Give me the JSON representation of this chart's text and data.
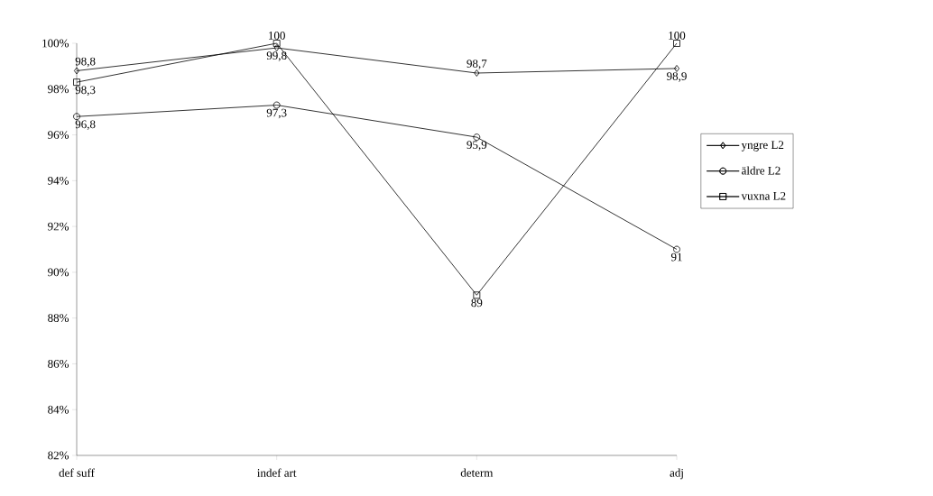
{
  "chart_data": {
    "type": "line",
    "categories": [
      "def suff",
      "indef art",
      "determ",
      "adj"
    ],
    "series": [
      {
        "name": "yngre L2",
        "color": "#000000",
        "marker": "diamond",
        "values": [
          98.8,
          99.8,
          98.7,
          98.9
        ],
        "value_labels": [
          "98,8",
          "99,8",
          "98,7",
          "98,9"
        ]
      },
      {
        "name": "äldre L2",
        "color": "#000000",
        "marker": "circle",
        "values": [
          96.8,
          97.3,
          95.9,
          91
        ],
        "value_labels": [
          "96,8",
          "97,3",
          "95,9",
          "91"
        ]
      },
      {
        "name": "vuxna L2",
        "color": "#000000",
        "marker": "square",
        "values": [
          98.3,
          100,
          89,
          100
        ],
        "value_labels": [
          "98,3",
          "100",
          "89",
          "100"
        ]
      }
    ],
    "ylim": [
      82,
      100
    ],
    "yticks": [
      {
        "value": 82,
        "label": "82%"
      },
      {
        "value": 84,
        "label": "84%"
      },
      {
        "value": 86,
        "label": "86%"
      },
      {
        "value": 88,
        "label": "88%"
      },
      {
        "value": 90,
        "label": "90%"
      },
      {
        "value": 92,
        "label": "92%"
      },
      {
        "value": 94,
        "label": "94%"
      },
      {
        "value": 96,
        "label": "96%"
      },
      {
        "value": 98,
        "label": "98%"
      },
      {
        "value": 100,
        "label": "100%"
      }
    ],
    "grid": false,
    "legend": "right",
    "line_style": "solid"
  }
}
